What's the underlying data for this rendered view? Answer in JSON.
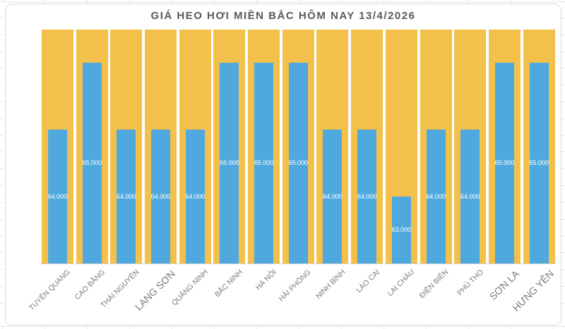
{
  "chart_data": {
    "type": "bar",
    "title": "GIÁ HEO HƠI MIỀN BẮC HÔM NAY 13/4/2026",
    "categories": [
      "TUYÊN QUANG",
      "CAO BẰNG",
      "THÁI NGUYÊN",
      "LẠNG SƠN",
      "QUẢNG NINH",
      "BẮC NINH",
      "HÀ NỘI",
      "HẢI PHÒNG",
      "NINH BÌNH",
      "LÀO CAI",
      "LAI CHÂU",
      "ĐIỆN BIÊN",
      "PHÚ THỌ",
      "SƠN LA",
      "HƯNG YÊN"
    ],
    "values": [
      64000,
      65000,
      64000,
      64000,
      64000,
      65000,
      65000,
      65000,
      64000,
      64000,
      63000,
      64000,
      64000,
      65000,
      65000
    ],
    "value_labels": [
      "64.000",
      "65.000",
      "64.000",
      "64.000",
      "64.000",
      "65.000",
      "65.000",
      "65.000",
      "64.000",
      "64.000",
      "63.000",
      "64.000",
      "64.000",
      "65.000",
      "65.000"
    ],
    "ylim": [
      62000,
      65500
    ],
    "xlabel": "",
    "ylabel": "",
    "grid": false,
    "legend": false,
    "background_columns_full_height": true,
    "large_label_indices": [
      3,
      13,
      14
    ],
    "colors": {
      "bar": "#4fa9df",
      "column_background": "#f2c04b",
      "title_text": "#595959",
      "axis_label_text": "#7b7b7b",
      "value_label_text": "#ffffff",
      "axis_line": "#d6d6d6",
      "frame_border": "#d9d9d9"
    }
  }
}
